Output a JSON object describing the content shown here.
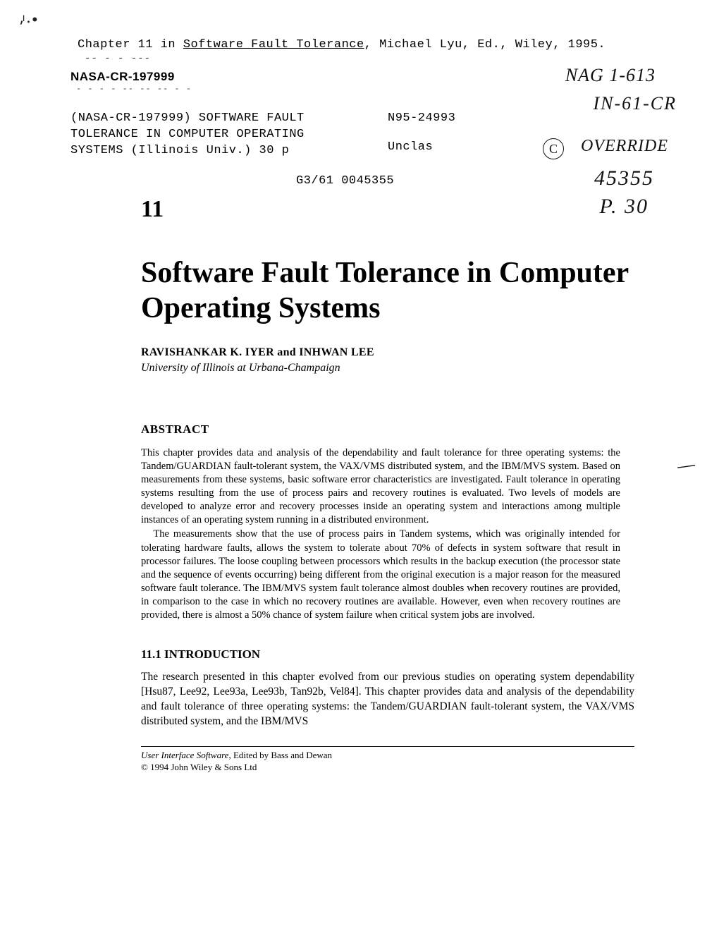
{
  "scuff": "⸴ᶦ ⸳ •",
  "chapter_ref_pre": "Chapter 11 in  ",
  "chapter_ref_uline": "Software Fault Tolerance",
  "chapter_ref_post": ", Michael Lyu, Ed., Wiley, 1995.",
  "dashes": "-- -   - ---",
  "nasa_cr": "NASA-CR-197999",
  "dashline": "- - -   - -- -- -- - -",
  "cat_left_1": "(NASA-CR-197999)  SOFTWARE FAULT",
  "cat_left_2": "TOLERANCE IN COMPUTER OPERATING",
  "cat_left_3": "SYSTEMS  (Illinois Univ.)  30 p",
  "cat_right_1": "N95-24993",
  "cat_right_2": "Unclas",
  "cat_bottom": "G3/61  0045355",
  "hand_nag": "NAG 1-613",
  "hand_in": "IN-61-CR",
  "hand_circ": "C",
  "hand_over": "OVERRIDE",
  "hand_num": "45355",
  "hand_p": "P. 30",
  "hand_tick": "—",
  "chapnum": "11",
  "title": "Software Fault Tolerance in Computer Operating Systems",
  "authors": "RAVISHANKAR K. IYER and INHWAN LEE",
  "affil": "University of Illinois at Urbana-Champaign",
  "abstract_head": "ABSTRACT",
  "abstract_p1": "This chapter provides data and analysis of the dependability and fault tolerance for three operating systems: the Tandem/GUARDIAN fault-tolerant system, the VAX/VMS distributed system, and the IBM/MVS system. Based on measurements from these systems, basic software error characteristics are investigated. Fault tolerance in operating systems resulting from the use of process pairs and recovery routines is evaluated. Two levels of models are developed to analyze error and recovery processes inside an operating system and interactions among multiple instances of an operating system running in a distributed environment.",
  "abstract_p2": "The measurements show that the use of process pairs in Tandem systems, which was originally intended for tolerating hardware faults, allows the system to tolerate about 70% of defects in system software that result in processor failures. The loose coupling between processors which results in the backup execution (the processor state and the sequence of events occurring) being different from the original execution is a major reason for the measured software fault tolerance. The IBM/MVS system fault tolerance almost doubles when recovery routines are provided, in comparison to the case in which no recovery routines are available. However, even when recovery routines are provided, there is almost a 50% chance of system failure when critical system jobs are involved.",
  "intro_head": "11.1   INTRODUCTION",
  "intro_body": "The research presented in this chapter evolved from our previous studies on operating system dependability [Hsu87, Lee92, Lee93a, Lee93b, Tan92b, Vel84]. This chapter provides data and analysis of the dependability and fault tolerance of three operating systems: the Tandem/GUARDIAN fault-tolerant system, the VAX/VMS distributed system, and the IBM/MVS",
  "footer_line1_ital": "User Interface Software",
  "footer_line1_rest": ", Edited by Bass and Dewan",
  "footer_line2": "© 1994 John Wiley & Sons Ltd"
}
